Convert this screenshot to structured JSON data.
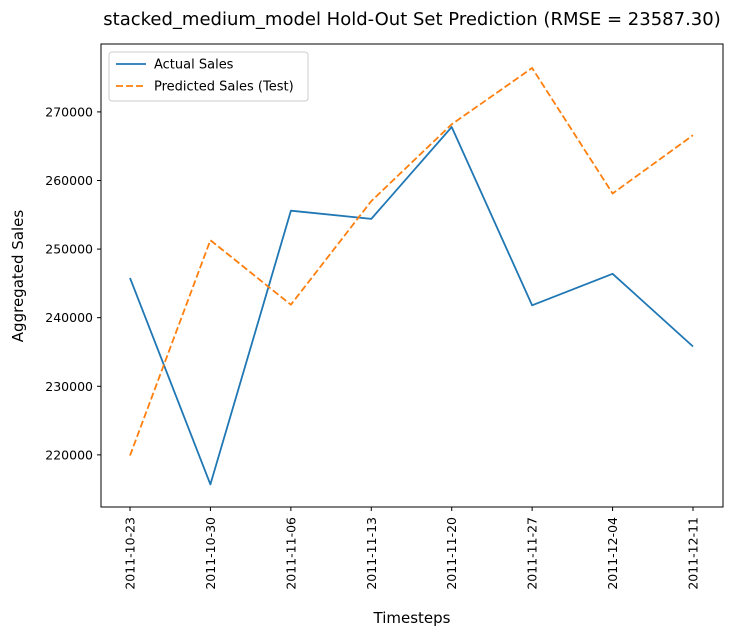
{
  "chart_data": {
    "type": "line",
    "title": "stacked_medium_model Hold-Out Set Prediction (RMSE = 23587.30)",
    "xlabel": "Timesteps",
    "ylabel": "Aggregated Sales",
    "categories": [
      "2011-10-23",
      "2011-10-30",
      "2011-11-06",
      "2011-11-13",
      "2011-11-20",
      "2011-11-27",
      "2011-12-04",
      "2011-12-11"
    ],
    "y_ticks": [
      220000,
      230000,
      240000,
      250000,
      260000,
      270000
    ],
    "ylim": [
      212400,
      279900
    ],
    "grid": false,
    "legend_position": "top-left",
    "series": [
      {
        "name": "Actual Sales",
        "values": [
          245800,
          215700,
          255600,
          254400,
          267800,
          241800,
          246400,
          235800
        ],
        "color": "#1f77b4",
        "style": "solid"
      },
      {
        "name": "Predicted Sales (Test)",
        "values": [
          219900,
          251300,
          241900,
          257000,
          268200,
          276400,
          258100,
          266600
        ],
        "color": "#ff7f0e",
        "style": "dashed"
      }
    ]
  }
}
